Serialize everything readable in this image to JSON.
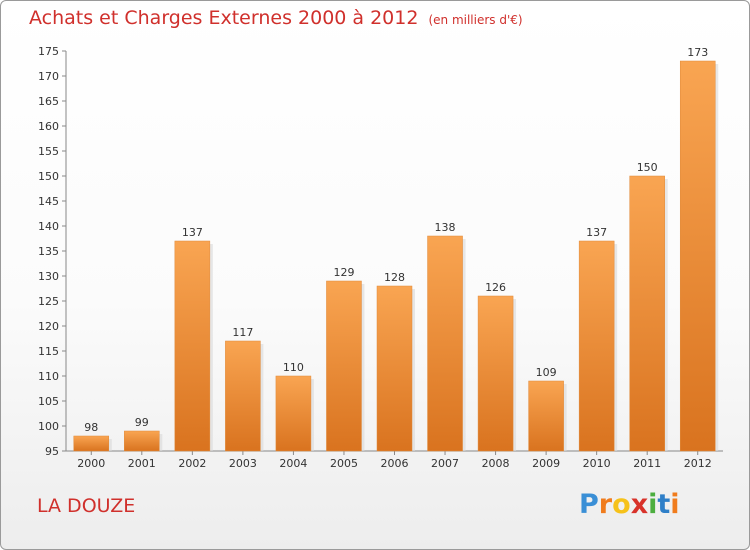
{
  "chart_data": {
    "type": "bar",
    "title": "Achats et Charges Externes 2000 à 2012",
    "subtitle": "(en milliers d'€)",
    "categories": [
      "2000",
      "2001",
      "2002",
      "2003",
      "2004",
      "2005",
      "2006",
      "2007",
      "2008",
      "2009",
      "2010",
      "2011",
      "2012"
    ],
    "values": [
      98,
      99,
      137,
      117,
      110,
      129,
      128,
      138,
      126,
      109,
      137,
      150,
      173
    ],
    "ylim": [
      95,
      175
    ],
    "yticks": [
      95,
      100,
      105,
      110,
      115,
      120,
      125,
      130,
      135,
      140,
      145,
      150,
      155,
      160,
      165,
      170,
      175
    ],
    "xlabel": "",
    "ylabel": "",
    "grid": false,
    "bar_color": "#f0913a"
  },
  "commune": "LA DOUZE",
  "logo": {
    "letters": [
      "P",
      "r",
      "o",
      "x",
      "i",
      "t",
      "i"
    ],
    "colors": [
      "#3a8fd6",
      "#f07c1d",
      "#f6c21a",
      "#d8322a",
      "#4cae3f",
      "#2f7fc8",
      "#f07c1d"
    ]
  }
}
